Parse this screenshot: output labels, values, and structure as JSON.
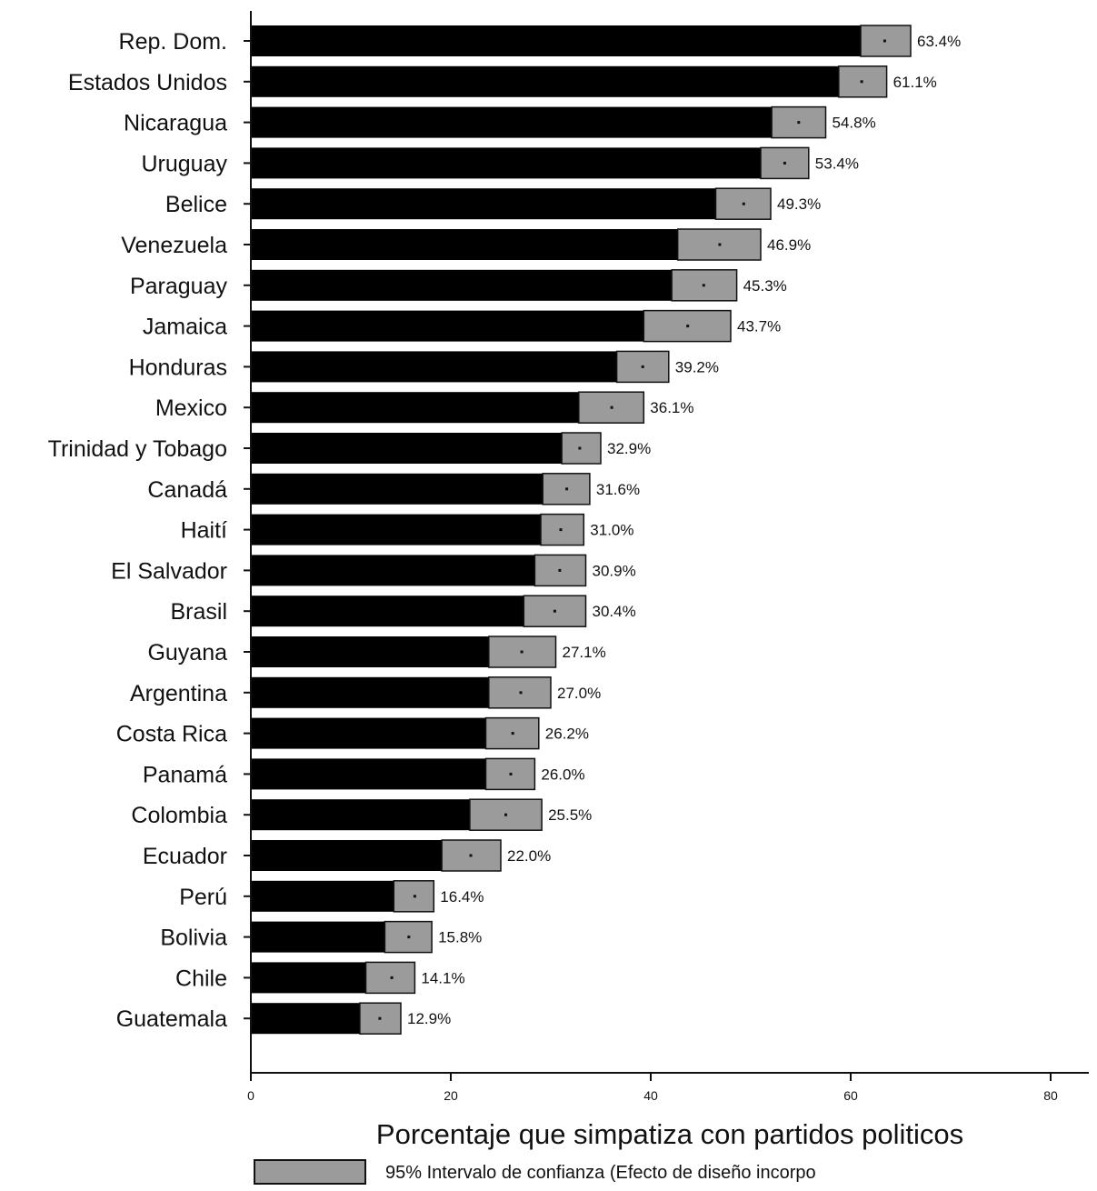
{
  "chart_data": {
    "type": "bar",
    "orientation": "horizontal",
    "categories": [
      "Rep. Dom.",
      "Estados Unidos",
      "Nicaragua",
      "Uruguay",
      "Belice",
      "Venezuela",
      "Paraguay",
      "Jamaica",
      "Honduras",
      "Mexico",
      "Trinidad y Tobago",
      "Canadá",
      "Haití",
      "El Salvador",
      "Brasil",
      "Guyana",
      "Argentina",
      "Costa Rica",
      "Panamá",
      "Colombia",
      "Ecuador",
      "Perú",
      "Bolivia",
      "Chile",
      "Guatemala"
    ],
    "values": [
      63.4,
      61.1,
      54.8,
      53.4,
      49.3,
      46.9,
      45.3,
      43.7,
      39.2,
      36.1,
      32.9,
      31.6,
      31.0,
      30.9,
      30.4,
      27.1,
      27.0,
      26.2,
      26.0,
      25.5,
      22.0,
      16.4,
      15.8,
      14.1,
      12.9
    ],
    "value_labels": [
      "63.4%",
      "61.1%",
      "54.8%",
      "53.4%",
      "49.3%",
      "46.9%",
      "45.3%",
      "43.7%",
      "39.2%",
      "36.1%",
      "32.9%",
      "31.6%",
      "31.0%",
      "30.9%",
      "30.4%",
      "27.1%",
      "27.0%",
      "26.2%",
      "26.0%",
      "25.5%",
      "22.0%",
      "16.4%",
      "15.8%",
      "14.1%",
      "12.9%"
    ],
    "ci_lower": [
      61.0,
      58.8,
      52.1,
      51.0,
      46.5,
      42.7,
      42.1,
      39.3,
      36.6,
      32.8,
      31.1,
      29.2,
      29.0,
      28.4,
      27.3,
      23.8,
      23.8,
      23.5,
      23.5,
      21.9,
      19.1,
      14.3,
      13.4,
      11.5,
      10.9
    ],
    "ci_upper": [
      66.0,
      63.6,
      57.5,
      55.8,
      52.0,
      51.0,
      48.6,
      48.0,
      41.8,
      39.3,
      35.0,
      33.9,
      33.3,
      33.5,
      33.5,
      30.5,
      30.0,
      28.8,
      28.4,
      29.1,
      25.0,
      18.3,
      18.1,
      16.4,
      15.0
    ],
    "xlabel": "Porcentaje que simpatiza con partidos politicos",
    "ylabel": "",
    "xlim": [
      0,
      84
    ],
    "xticks": [
      "0",
      "20",
      "40",
      "60",
      "80"
    ],
    "legend": {
      "label": "95% Intervalo de confianza (Efecto de diseño incorpo",
      "position": "bottom"
    },
    "grid": false,
    "colors": {
      "bar": "#000000",
      "ci": "#9b9b9b",
      "ci_border": "#111111",
      "point": "#ffffff"
    }
  }
}
